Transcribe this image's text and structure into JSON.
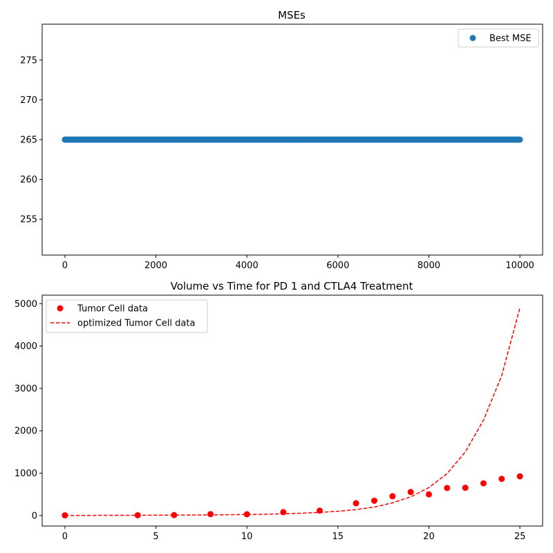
{
  "chart_data": [
    {
      "type": "scatter",
      "title": "MSEs",
      "xlabel": "",
      "ylabel": "",
      "xlim": [
        -500,
        10500
      ],
      "ylim": [
        250.5,
        279.5
      ],
      "xticks": [
        0,
        2000,
        4000,
        6000,
        8000,
        10000
      ],
      "yticks": [
        255,
        260,
        265,
        270,
        275
      ],
      "grid": false,
      "legend_position": "upper right",
      "series": [
        {
          "name": "Best MSE",
          "color": "#1f77b4",
          "marker": "circle",
          "x_range": [
            0,
            10000
          ],
          "constant_y": 265
        }
      ]
    },
    {
      "type": "line",
      "title": "Volume vs Time for PD 1 and CTLA4 Treatment",
      "xlabel": "",
      "ylabel": "",
      "xlim": [
        -1.25,
        26.25
      ],
      "ylim": [
        -248,
        5200
      ],
      "xticks": [
        0,
        5,
        10,
        15,
        20,
        25
      ],
      "yticks": [
        0,
        1000,
        2000,
        3000,
        4000,
        5000
      ],
      "grid": false,
      "legend_position": "upper left",
      "series": [
        {
          "name": "Tumor Cell data",
          "style": "points",
          "color": "#ff0000",
          "x": [
            0,
            4,
            6,
            8,
            10,
            12,
            14,
            16,
            17,
            18,
            19,
            20,
            21,
            22,
            23,
            24,
            25
          ],
          "y": [
            5,
            7,
            10,
            33,
            30,
            80,
            115,
            290,
            350,
            455,
            555,
            500,
            650,
            655,
            760,
            865,
            925
          ]
        },
        {
          "name": "optimized Tumor Cell data",
          "style": "dashed",
          "color": "#ff0000",
          "x": [
            0,
            1,
            2,
            3,
            4,
            5,
            6,
            7,
            8,
            9,
            10,
            11,
            12,
            13,
            14,
            15,
            16,
            17,
            18,
            19,
            20,
            21,
            22,
            23,
            24,
            25
          ],
          "y": [
            3,
            3,
            4,
            5,
            6,
            8,
            10,
            12,
            15,
            19,
            24,
            30,
            40,
            55,
            75,
            100,
            140,
            200,
            300,
            440,
            660,
            990,
            1500,
            2250,
            3300,
            4900
          ]
        }
      ]
    }
  ]
}
